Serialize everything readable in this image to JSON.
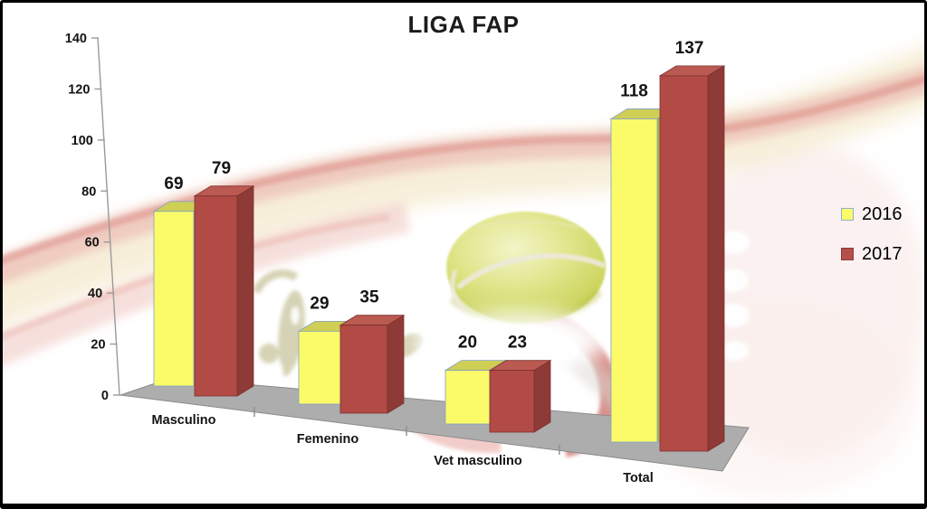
{
  "chart_data": {
    "type": "bar",
    "projection": "3d",
    "title": "LIGA FAP",
    "categories": [
      "Masculino",
      "Femenino",
      "Vet masculino",
      "Total"
    ],
    "series": [
      {
        "name": "2016",
        "values": [
          69,
          29,
          20,
          118
        ],
        "color": "#FBFB6A"
      },
      {
        "name": "2017",
        "values": [
          79,
          35,
          23,
          137
        ],
        "color": "#B24A46"
      }
    ],
    "xlabel": "",
    "ylabel": "",
    "ylim": [
      0,
      140
    ],
    "yticks": [
      0,
      20,
      40,
      60,
      80,
      100,
      120,
      140
    ],
    "grid": false,
    "data_labels": true,
    "legend_position": "right"
  },
  "legend": {
    "items": [
      {
        "label": "2016",
        "swatch": "#FBFB6A",
        "swatch_border": "#8FAFD0"
      },
      {
        "label": "2017",
        "swatch": "#B4504B",
        "swatch_border": "#8E3A37"
      }
    ]
  },
  "colors": {
    "bar_2016_front": "#FBFB6A",
    "bar_2016_top": "#CFCF55",
    "bar_2016_side": "#B5B546",
    "bar_2017_front": "#B24A46",
    "bar_2017_top": "#BB5A51",
    "bar_2017_side": "#8E3A37",
    "floor": "#ADADAD",
    "axis": "#8C8C8C",
    "text": "#141414"
  }
}
